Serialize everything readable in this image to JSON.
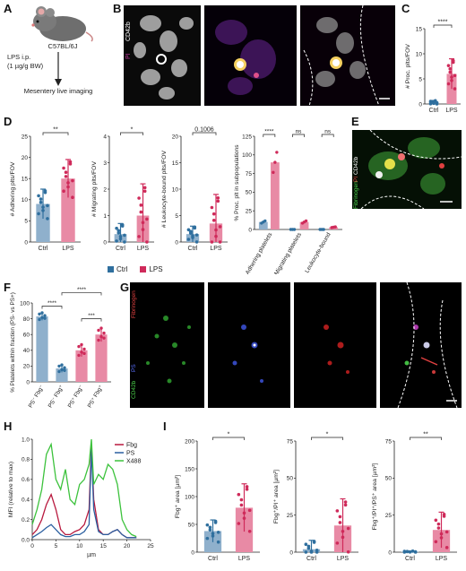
{
  "panels": {
    "A": {
      "letter": "A",
      "strain": "C57BL/6J",
      "treatment": "LPS i.p.",
      "dose": "(1 µg/g BW)",
      "imaging": "Mesentery live imaging"
    },
    "B": {
      "letter": "B",
      "channel_pi": "PI",
      "channel_cd42b": "CD42b"
    },
    "C": {
      "letter": "C",
      "ylabel": "# Proc. plts/FOV",
      "sig": "****",
      "categories": [
        "Ctrl",
        "LPS"
      ]
    },
    "D": {
      "letter": "D",
      "legend": [
        "Ctrl",
        "LPS"
      ]
    },
    "E": {
      "letter": "E",
      "ch_fib": "Fibrinogen",
      "ch_pi": "PI",
      "ch_cd42b": "CD42b"
    },
    "F": {
      "letter": "F"
    },
    "G": {
      "letter": "G",
      "ch_cd42b": "CD42b",
      "ch_ps": "PS",
      "ch_fib": "Fibrinogen"
    },
    "H": {
      "letter": "H"
    },
    "I": {
      "letter": "I"
    }
  },
  "colors": {
    "ctrl": "#2f6f9e",
    "lps": "#cf2a5a",
    "ctrl_bar": "#8fb0cc",
    "lps_bar": "#e88aa5",
    "fbg": "#b8193e",
    "ps": "#2b5fa0",
    "x488": "#3cc23c"
  },
  "chart_data": [
    {
      "id": "C",
      "type": "bar",
      "categories": [
        "Ctrl",
        "LPS"
      ],
      "values": [
        0.3,
        6.0
      ],
      "errors": [
        0.4,
        3.0
      ],
      "ylabel": "# Proc. plts/FOV",
      "ylim": [
        0,
        15
      ],
      "yticks": [
        0,
        5,
        10,
        15
      ],
      "sig": "****"
    },
    {
      "id": "D1",
      "type": "bar",
      "categories": [
        "Ctrl",
        "LPS"
      ],
      "values": [
        9,
        15
      ],
      "errors": [
        3.5,
        4.5
      ],
      "ylabel": "# Adhering plts/FOV",
      "ylim": [
        0,
        25
      ],
      "yticks": [
        0,
        5,
        10,
        15,
        20,
        25
      ],
      "sig": "**"
    },
    {
      "id": "D2",
      "type": "bar",
      "categories": [
        "Ctrl",
        "LPS"
      ],
      "values": [
        0.3,
        1.0
      ],
      "errors": [
        0.4,
        1.2
      ],
      "ylabel": "# Migrating plts/FOV",
      "ylim": [
        0,
        4
      ],
      "yticks": [
        0,
        1,
        2,
        3,
        4
      ],
      "sig": "*"
    },
    {
      "id": "D3",
      "type": "bar",
      "categories": [
        "Ctrl",
        "LPS"
      ],
      "values": [
        1.5,
        3.5
      ],
      "errors": [
        1.5,
        5.5
      ],
      "ylabel": "# Leukocyte-bound plts/FOV",
      "ylim": [
        0,
        20
      ],
      "yticks": [
        0,
        5,
        10,
        15,
        20
      ],
      "sig": "0.1006"
    },
    {
      "id": "D4",
      "type": "bar",
      "categories": [
        "Adhering platelets",
        "Migrating platelets",
        "Leukocyte-bound"
      ],
      "series": [
        {
          "name": "Ctrl",
          "values": [
            10,
            0,
            0
          ]
        },
        {
          "name": "LPS",
          "values": [
            90,
            10,
            3
          ]
        }
      ],
      "ylabel": "% Proc. plt in subpopulations",
      "ylim": [
        0,
        125
      ],
      "yticks": [
        0,
        25,
        50,
        75,
        100,
        125
      ],
      "sig": [
        "****",
        "ns",
        "ns"
      ]
    },
    {
      "id": "F",
      "type": "bar",
      "categories": [
        "PS- Fbg-",
        "PS- Fbg+",
        "PS+ Fbg-",
        "PS+ Fbg+"
      ],
      "values": [
        83,
        17,
        40,
        60
      ],
      "errors": [
        5,
        5,
        8,
        9
      ],
      "ylabel": "% Platelets within fraction (PS- vs PS+)",
      "ylim": [
        0,
        100
      ],
      "yticks": [
        0,
        20,
        40,
        60,
        80,
        100
      ],
      "sig": [
        "****",
        "****",
        "***"
      ],
      "xticklabels": [
        "PS⁻ Fbg⁻",
        "PS⁻ Fbg⁺",
        "PS⁺ Fbg⁻",
        "PS⁺ Fbg⁺"
      ]
    },
    {
      "id": "H",
      "type": "line",
      "xlabel": "µm",
      "ylabel": "MFI (relative to max)",
      "xlim": [
        0,
        25
      ],
      "ylim": [
        0,
        1.0
      ],
      "xticks": [
        0,
        5,
        10,
        15,
        20,
        25
      ],
      "yticks": [
        0,
        0.2,
        0.4,
        0.6,
        0.8,
        1.0
      ],
      "series": [
        {
          "name": "Fbg",
          "x": [
            0,
            1,
            2,
            3,
            4,
            5,
            6,
            7,
            8,
            9,
            10,
            11,
            12,
            12.5,
            13,
            14,
            15,
            16,
            17,
            18,
            19,
            20,
            21,
            22
          ],
          "y": [
            0.05,
            0.1,
            0.2,
            0.35,
            0.45,
            0.3,
            0.1,
            0.05,
            0.05,
            0.08,
            0.1,
            0.15,
            0.3,
            0.95,
            0.4,
            0.1,
            0.05,
            0.05,
            0.08,
            0.1,
            0.05,
            0.02,
            0.02,
            0.02
          ]
        },
        {
          "name": "PS",
          "x": [
            0,
            1,
            2,
            3,
            4,
            5,
            6,
            7,
            8,
            9,
            10,
            11,
            12,
            12.5,
            13,
            14,
            15,
            16,
            17,
            18,
            19,
            20,
            21,
            22
          ],
          "y": [
            0.02,
            0.05,
            0.08,
            0.12,
            0.15,
            0.1,
            0.05,
            0.03,
            0.03,
            0.05,
            0.05,
            0.08,
            0.15,
            0.9,
            0.3,
            0.08,
            0.05,
            0.05,
            0.08,
            0.1,
            0.05,
            0.02,
            0.02,
            0.02
          ]
        },
        {
          "name": "X488",
          "x": [
            0,
            1,
            2,
            3,
            4,
            5,
            6,
            7,
            8,
            9,
            10,
            11,
            12,
            12.5,
            13,
            14,
            15,
            16,
            17,
            18,
            19,
            20,
            21,
            22
          ],
          "y": [
            0.15,
            0.3,
            0.5,
            0.85,
            0.95,
            0.6,
            0.5,
            0.7,
            0.4,
            0.35,
            0.55,
            0.6,
            0.75,
            1.0,
            0.55,
            0.65,
            0.6,
            0.75,
            0.7,
            0.55,
            0.2,
            0.1,
            0.05,
            0.03
          ]
        }
      ],
      "legend": [
        "Fbg",
        "PS",
        "X488"
      ]
    },
    {
      "id": "I1",
      "type": "bar",
      "categories": [
        "Ctrl",
        "LPS"
      ],
      "values": [
        38,
        80
      ],
      "errors": [
        20,
        43
      ],
      "ylabel": "Fbg⁺ area [µm²]",
      "ylim": [
        0,
        200
      ],
      "yticks": [
        0,
        50,
        100,
        150,
        200
      ],
      "sig": "*"
    },
    {
      "id": "I2",
      "type": "bar",
      "categories": [
        "Ctrl",
        "LPS"
      ],
      "values": [
        2,
        18
      ],
      "errors": [
        6,
        18
      ],
      "ylabel": "Fbg⁺/PI⁺ area [µm²]",
      "ylim": [
        0,
        75
      ],
      "yticks": [
        0,
        25,
        50,
        75
      ],
      "sig": "*"
    },
    {
      "id": "I3",
      "type": "bar",
      "categories": [
        "Ctrl",
        "LPS"
      ],
      "values": [
        0.3,
        15
      ],
      "errors": [
        0.5,
        12
      ],
      "ylabel": "Fbg⁺/PI⁺/PS⁺ area [µm²]",
      "ylim": [
        0,
        75
      ],
      "yticks": [
        0,
        25,
        50,
        75
      ],
      "sig": "**"
    }
  ]
}
